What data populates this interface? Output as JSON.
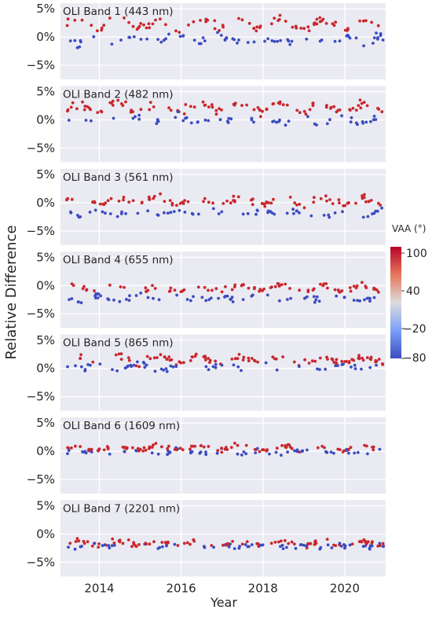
{
  "figure": {
    "ylabel": "Relative Difference",
    "xlabel": "Year",
    "colorbar_title": "VAA (°)",
    "colorbar_ticks": [
      "100",
      "40",
      "−20",
      "−80"
    ]
  },
  "colors": {
    "panel_bg": "#eaeaf2",
    "grid": "#ffffff",
    "high_vaa": "#c8282d",
    "low_vaa": "#3b4cc0"
  },
  "chart_data": {
    "type": "scatter",
    "x_range": [
      2013.05,
      2021.0
    ],
    "x_ticks": [
      2014,
      2016,
      2018,
      2020
    ],
    "x_tick_labels": [
      "2014",
      "2016",
      "2018",
      "2020"
    ],
    "y_range": [
      -7.5,
      6.0
    ],
    "y_ticks": [
      -5,
      0,
      5
    ],
    "y_tick_labels": [
      "−5%",
      "0%",
      "5%"
    ],
    "color_scale": {
      "label": "VAA (°)",
      "min": -80,
      "max": 100,
      "colormap": "coolwarm"
    },
    "panels": [
      {
        "title": "OLI Band 1 (443 nm)",
        "high_mean": 2.3,
        "low_mean": -0.4,
        "spread": 1.2,
        "seasonal": 1.0
      },
      {
        "title": "OLI Band 2 (482 nm)",
        "high_mean": 2.2,
        "low_mean": 0.0,
        "spread": 1.1,
        "seasonal": 0.9
      },
      {
        "title": "OLI Band 3 (561 nm)",
        "high_mean": 0.3,
        "low_mean": -1.8,
        "spread": 0.9,
        "seasonal": 0.7
      },
      {
        "title": "OLI Band 4 (655 nm)",
        "high_mean": -0.5,
        "low_mean": -2.3,
        "spread": 0.8,
        "seasonal": 0.6
      },
      {
        "title": "OLI Band 5 (865 nm)",
        "high_mean": 1.5,
        "low_mean": 0.3,
        "spread": 0.8,
        "seasonal": 0.7
      },
      {
        "title": "OLI Band 6 (1609 nm)",
        "high_mean": 0.6,
        "low_mean": -0.1,
        "spread": 0.6,
        "seasonal": 0.5
      },
      {
        "title": "OLI Band 7 (2201 nm)",
        "high_mean": -1.6,
        "low_mean": -2.1,
        "spread": 0.8,
        "seasonal": 0.4
      }
    ]
  }
}
